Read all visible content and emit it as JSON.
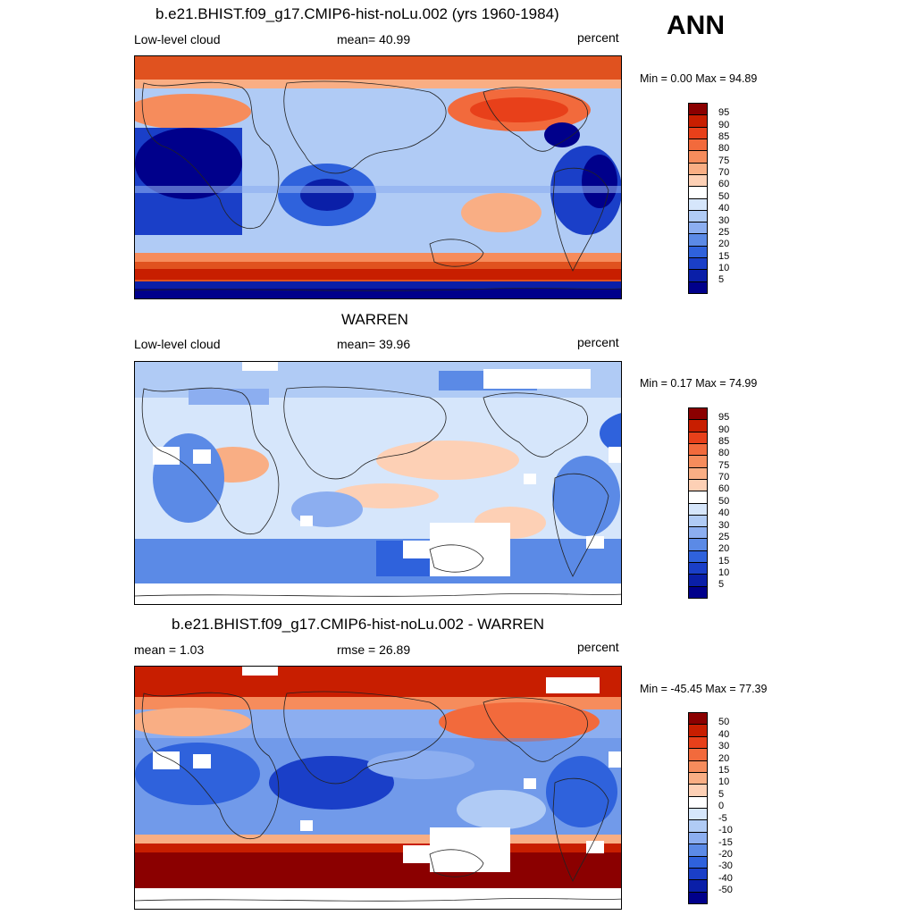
{
  "corner_label": "ANN",
  "panels": [
    {
      "title": "b.e21.BHIST.f09_g17.CMIP6-hist-noLu.002 (yrs 1960-1984)",
      "left_label": "Low-level cloud",
      "center_label": "mean=  40.99",
      "right_label": "percent",
      "minmax": "Min =   0.00 Max =  94.89"
    },
    {
      "title": "WARREN",
      "left_label": "Low-level cloud",
      "center_label": "mean=  39.96",
      "right_label": "percent",
      "minmax": "Min =   0.17 Max =  74.99"
    },
    {
      "title": "b.e21.BHIST.f09_g17.CMIP6-hist-noLu.002 - WARREN",
      "left_label": "mean =   1.03",
      "center_label": "rmse =  26.89",
      "right_label": "percent",
      "minmax": "Min = -45.45 Max =  77.39"
    }
  ],
  "colorbars": {
    "absolute": {
      "labels": [
        "95",
        "90",
        "85",
        "80",
        "75",
        "70",
        "60",
        "50",
        "40",
        "30",
        "25",
        "20",
        "15",
        "10",
        "5"
      ],
      "colors": [
        "#8b0000",
        "#c81e00",
        "#e8401a",
        "#f26a3c",
        "#f68c5c",
        "#f9ae84",
        "#fdd0b5",
        "#ffffff",
        "#d6e6fb",
        "#b0cbf5",
        "#8caef0",
        "#5b8ae6",
        "#2f62dc",
        "#1a3fc8",
        "#0a1fa8",
        "#00008b"
      ]
    },
    "difference": {
      "labels": [
        "50",
        "40",
        "30",
        "20",
        "15",
        "10",
        "5",
        "0",
        "-5",
        "-10",
        "-15",
        "-20",
        "-30",
        "-40",
        "-50"
      ],
      "colors": [
        "#8b0000",
        "#c81e00",
        "#e8401a",
        "#f26a3c",
        "#f68c5c",
        "#f9ae84",
        "#fdd0b5",
        "#ffffff",
        "#d6e6fb",
        "#b0cbf5",
        "#8caef0",
        "#5b8ae6",
        "#2f62dc",
        "#1a3fc8",
        "#0a1fa8",
        "#00008b"
      ]
    }
  }
}
